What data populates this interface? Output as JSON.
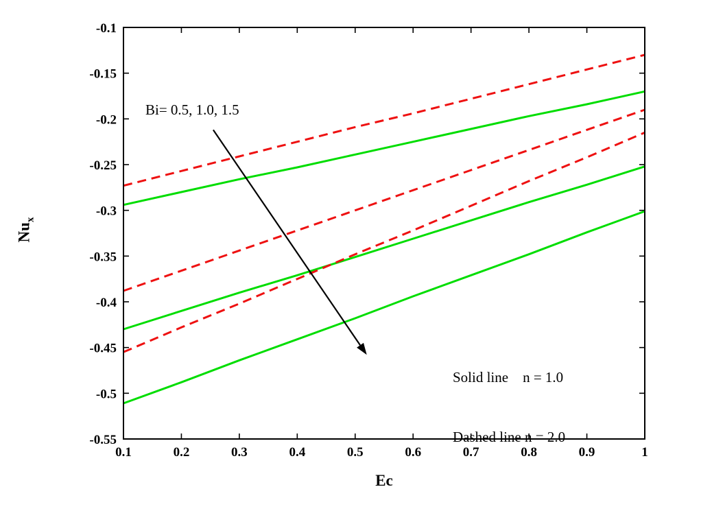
{
  "chart_data": {
    "type": "line",
    "title": "",
    "xlabel": "Ec",
    "ylabel_main": "Nu",
    "ylabel_sub": "x",
    "axes": {
      "xlim": [
        0.1,
        1.0
      ],
      "ylim": [
        -0.55,
        -0.1
      ],
      "xticks": [
        0.1,
        0.2,
        0.3,
        0.4,
        0.5,
        0.6,
        0.7,
        0.8,
        0.9,
        1.0
      ],
      "xtick_labels": [
        "0.1",
        "0.2",
        "0.3",
        "0.4",
        "0.5",
        "0.6",
        "0.7",
        "0.8",
        "0.9",
        "1"
      ],
      "yticks": [
        -0.1,
        -0.15,
        -0.2,
        -0.25,
        -0.3,
        -0.35,
        -0.4,
        -0.45,
        -0.5,
        -0.55
      ],
      "ytick_labels": [
        "-0.1",
        "-0.15",
        "-0.2",
        "-0.25",
        "-0.3",
        "-0.35",
        "-0.4",
        "-0.45",
        "-0.5",
        "-0.55"
      ],
      "grid": false,
      "box": true
    },
    "x": [
      0.1,
      0.2,
      0.3,
      0.4,
      0.5,
      0.6,
      0.7,
      0.8,
      0.9,
      1.0
    ],
    "series": [
      {
        "id": "solid-bi-0.5",
        "name": "n = 1.0, Bi = 0.5",
        "line_style": "solid",
        "color": "#00dd00",
        "width": 3,
        "values": [
          -0.294,
          -0.28,
          -0.266,
          -0.253,
          -0.239,
          -0.225,
          -0.211,
          -0.197,
          -0.184,
          -0.17
        ]
      },
      {
        "id": "solid-bi-1.0",
        "name": "n = 1.0, Bi = 1.0",
        "line_style": "solid",
        "color": "#00dd00",
        "width": 3,
        "values": [
          -0.43,
          -0.41,
          -0.39,
          -0.371,
          -0.351,
          -0.331,
          -0.311,
          -0.291,
          -0.272,
          -0.252
        ]
      },
      {
        "id": "solid-bi-1.5",
        "name": "n = 1.0, Bi = 1.5",
        "line_style": "solid",
        "color": "#00dd00",
        "width": 3,
        "values": [
          -0.511,
          -0.488,
          -0.464,
          -0.441,
          -0.418,
          -0.394,
          -0.371,
          -0.348,
          -0.324,
          -0.301
        ]
      },
      {
        "id": "dashed-bi-0.5",
        "name": "n = 2.0, Bi = 0.5",
        "line_style": "dashed",
        "color": "#ee1111",
        "width": 3,
        "values": [
          -0.273,
          -0.257,
          -0.241,
          -0.225,
          -0.209,
          -0.194,
          -0.178,
          -0.162,
          -0.146,
          -0.13
        ]
      },
      {
        "id": "dashed-bi-1.0",
        "name": "n = 2.0, Bi = 1.0",
        "line_style": "dashed",
        "color": "#ee1111",
        "width": 3,
        "values": [
          -0.388,
          -0.366,
          -0.344,
          -0.322,
          -0.3,
          -0.278,
          -0.256,
          -0.234,
          -0.212,
          -0.19
        ]
      },
      {
        "id": "dashed-bi-1.5",
        "name": "n = 2.0, Bi = 1.5",
        "line_style": "dashed",
        "color": "#ee1111",
        "width": 3,
        "values": [
          -0.455,
          -0.428,
          -0.402,
          -0.375,
          -0.348,
          -0.322,
          -0.295,
          -0.268,
          -0.242,
          -0.215
        ]
      }
    ],
    "annotations": {
      "bi_label": "Bi= 0.5, 1.0, 1.5",
      "arrow": {
        "from": [
          0.255,
          -0.212
        ],
        "to": [
          0.52,
          -0.458
        ],
        "color": "#000000"
      },
      "legend_line1": "Solid line    n = 1.0",
      "legend_line2": "Dashed line n = 2.0"
    }
  }
}
